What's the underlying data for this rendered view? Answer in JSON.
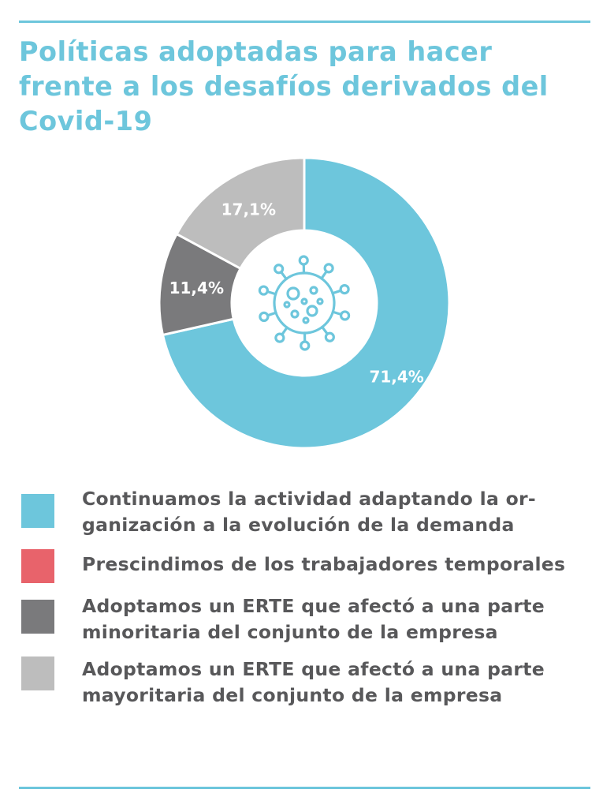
{
  "header": {
    "title": "Políticas adoptadas para hacer frente a los desafíos derivados del Covid-19"
  },
  "chart_data": {
    "type": "pie",
    "donut": true,
    "center_icon": "virus-icon",
    "slices": [
      {
        "label": "Continuamos la actividad adaptando la organización a la evolución de la demanda",
        "value": 71.4,
        "display": "71,4%",
        "color": "#6dc6dc"
      },
      {
        "label": "Adoptamos un ERTE que afectó a una parte minoritaria del conjunto de la empresa",
        "value": 11.4,
        "display": "11,4%",
        "color": "#7a7a7c"
      },
      {
        "label": "Adoptamos un ERTE que afectó a una parte mayoritaria del conjunto de la empresa",
        "value": 17.1,
        "display": "17,1%",
        "color": "#bdbdbd"
      }
    ],
    "legend": [
      {
        "text": "Continuamos la actividad adaptando la or-\nganización a la evolución de la demanda",
        "color": "#6dc6dc"
      },
      {
        "text": "Prescindimos de los trabajadores temporales",
        "color": "#e8636b"
      },
      {
        "text": "Adoptamos un ERTE que afectó a una parte\nminoritaria del conjunto de la empresa",
        "color": "#7a7a7c"
      },
      {
        "text": "Adoptamos un ERTE que afectó a una parte\nmayoritaria del conjunto de la empresa",
        "color": "#bdbdbd"
      }
    ]
  }
}
